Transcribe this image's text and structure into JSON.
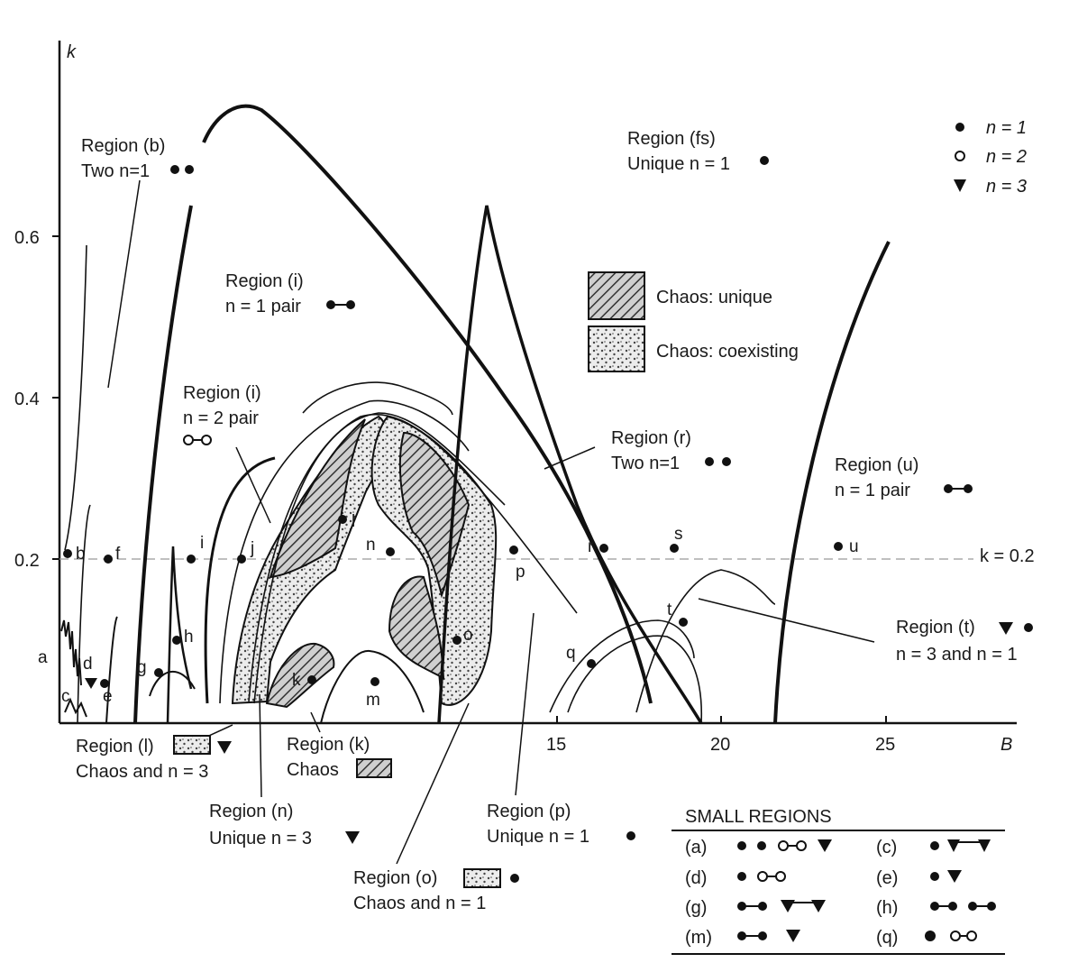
{
  "axes": {
    "y_label": "k",
    "x_label": "B",
    "y_ticks": [
      "0.6",
      "0.4",
      "0.2"
    ],
    "x_ticks": [
      "15",
      "20",
      "25"
    ],
    "ref_line_label": "k = 0.2"
  },
  "legend": {
    "n1": "n = 1",
    "n2": "n = 2",
    "n3": "n = 3",
    "chaos_unique": "Chaos: unique",
    "chaos_coexisting": "Chaos: coexisting"
  },
  "regions": {
    "b": {
      "title": "Region (b)",
      "line2": "Two n=1"
    },
    "fs": {
      "title": "Region (fs)",
      "line2": "Unique n = 1"
    },
    "i1": {
      "title": "Region (i)",
      "line2": "n = 1 pair"
    },
    "i2": {
      "title": "Region (i)",
      "line2": "n = 2 pair"
    },
    "r": {
      "title": "Region (r)",
      "line2": "Two n=1"
    },
    "u": {
      "title": "Region (u)",
      "line2": "n = 1 pair"
    },
    "t": {
      "title": "Region (t)",
      "line2": "n = 3 and n = 1"
    },
    "l": {
      "title": "Region (l)",
      "line2": "Chaos and n = 3"
    },
    "k": {
      "title": "Region (k)",
      "line2": "Chaos"
    },
    "n": {
      "title": "Region (n)",
      "line2": "Unique n = 3"
    },
    "o": {
      "title": "Region (o)",
      "line2": "Chaos and n = 1"
    },
    "p": {
      "title": "Region (p)",
      "line2": "Unique n = 1"
    }
  },
  "point_labels": [
    "a",
    "b",
    "c",
    "d",
    "e",
    "f",
    "g",
    "h",
    "i",
    "j",
    "k",
    "l",
    "m",
    "n",
    "o",
    "p",
    "q",
    "r",
    "s",
    "t",
    "u"
  ],
  "small_regions": {
    "title": "SMALL REGIONS",
    "rows": [
      {
        "left": "(a)",
        "right": "(c)"
      },
      {
        "left": "(d)",
        "right": "(e)"
      },
      {
        "left": "(g)",
        "right": "(h)"
      },
      {
        "left": "(m)",
        "right": "(q)"
      }
    ]
  }
}
